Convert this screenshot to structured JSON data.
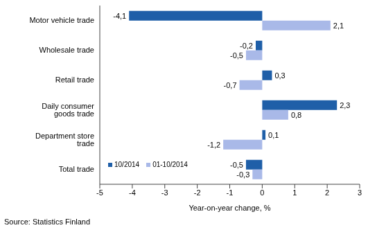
{
  "chart_data": {
    "type": "bar",
    "orientation": "horizontal",
    "categories": [
      "Motor vehicle trade",
      "Wholesale trade",
      "Retail trade",
      "Daily consumer goods trade",
      "Department store trade",
      "Total trade"
    ],
    "series": [
      {
        "name": "10/2014",
        "color": "#1f5fa8",
        "values": [
          -4.1,
          -0.2,
          0.3,
          2.3,
          0.1,
          -0.5
        ],
        "value_labels": [
          "-4,1",
          "-0,2",
          "0,3",
          "2,3",
          "0,1",
          "-0,5"
        ]
      },
      {
        "name": "01-10/2014",
        "color": "#a9b9e8",
        "values": [
          2.1,
          -0.5,
          -0.7,
          0.8,
          -1.2,
          -0.3
        ],
        "value_labels": [
          "2,1",
          "-0,5",
          "-0,7",
          "0,8",
          "-1,2",
          "-0,3"
        ]
      }
    ],
    "xlim": [
      -5,
      3
    ],
    "xticks": [
      -5,
      -4,
      -3,
      -2,
      -1,
      0,
      1,
      2,
      3
    ],
    "x_label": "Year-on-year change, %",
    "annotations": [
      "Source: Statistics Finland"
    ],
    "data_labels": true,
    "grid": false,
    "legend": "lower left"
  }
}
